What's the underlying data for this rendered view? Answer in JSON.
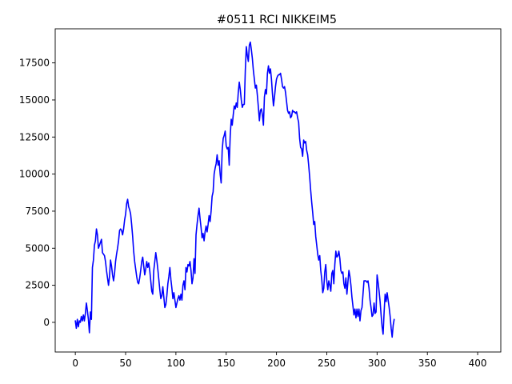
{
  "chart_data": {
    "type": "line",
    "title": "#0511 RCI NIKKEIM5",
    "xlabel": "",
    "ylabel": "",
    "xlim": [
      -20,
      423
    ],
    "ylim": [
      -2000,
      19800
    ],
    "x_ticks": [
      0,
      50,
      100,
      150,
      200,
      250,
      300,
      350,
      400
    ],
    "y_ticks": [
      0,
      2500,
      5000,
      7500,
      10000,
      12500,
      15000,
      17500
    ],
    "y_tick_labels": [
      "0",
      "2500",
      "5000",
      "7500",
      "10000",
      "12500",
      "15000",
      "17500"
    ],
    "grid": false,
    "series": [
      {
        "color": "#0000ff",
        "points": [
          [
            0,
            100
          ],
          [
            1,
            -400
          ],
          [
            2,
            200
          ],
          [
            3,
            -300
          ],
          [
            4,
            100
          ],
          [
            5,
            0
          ],
          [
            6,
            400
          ],
          [
            7,
            100
          ],
          [
            8,
            500
          ],
          [
            9,
            100
          ],
          [
            10,
            600
          ],
          [
            11,
            1300
          ],
          [
            12,
            800
          ],
          [
            13,
            200
          ],
          [
            14,
            -700
          ],
          [
            15,
            700
          ],
          [
            16,
            200
          ],
          [
            17,
            3700
          ],
          [
            18,
            4200
          ],
          [
            19,
            5200
          ],
          [
            20,
            5500
          ],
          [
            21,
            6300
          ],
          [
            22,
            5900
          ],
          [
            23,
            5000
          ],
          [
            24,
            5200
          ],
          [
            25,
            5400
          ],
          [
            26,
            5600
          ],
          [
            27,
            4700
          ],
          [
            28,
            4600
          ],
          [
            29,
            4500
          ],
          [
            30,
            4100
          ],
          [
            31,
            3500
          ],
          [
            32,
            3000
          ],
          [
            33,
            2500
          ],
          [
            34,
            3100
          ],
          [
            35,
            4200
          ],
          [
            36,
            3800
          ],
          [
            37,
            3200
          ],
          [
            38,
            2800
          ],
          [
            39,
            3300
          ],
          [
            40,
            4100
          ],
          [
            41,
            4600
          ],
          [
            42,
            5000
          ],
          [
            43,
            5500
          ],
          [
            44,
            6200
          ],
          [
            45,
            6300
          ],
          [
            46,
            6200
          ],
          [
            47,
            5900
          ],
          [
            48,
            6300
          ],
          [
            49,
            6900
          ],
          [
            50,
            7300
          ],
          [
            51,
            8000
          ],
          [
            52,
            8300
          ],
          [
            53,
            7800
          ],
          [
            54,
            7600
          ],
          [
            55,
            7300
          ],
          [
            56,
            6600
          ],
          [
            57,
            5800
          ],
          [
            58,
            4800
          ],
          [
            59,
            4100
          ],
          [
            60,
            3600
          ],
          [
            61,
            3100
          ],
          [
            62,
            2700
          ],
          [
            63,
            2600
          ],
          [
            64,
            3000
          ],
          [
            65,
            3500
          ],
          [
            66,
            4100
          ],
          [
            67,
            4400
          ],
          [
            68,
            3800
          ],
          [
            69,
            3200
          ],
          [
            70,
            3600
          ],
          [
            71,
            4100
          ],
          [
            72,
            3700
          ],
          [
            73,
            4000
          ],
          [
            74,
            3500
          ],
          [
            75,
            2800
          ],
          [
            76,
            2100
          ],
          [
            77,
            1900
          ],
          [
            78,
            3500
          ],
          [
            79,
            4100
          ],
          [
            80,
            4700
          ],
          [
            81,
            4200
          ],
          [
            82,
            3600
          ],
          [
            83,
            2900
          ],
          [
            84,
            2200
          ],
          [
            85,
            1600
          ],
          [
            86,
            1800
          ],
          [
            87,
            2400
          ],
          [
            88,
            1700
          ],
          [
            89,
            1000
          ],
          [
            90,
            1200
          ],
          [
            91,
            1800
          ],
          [
            92,
            2600
          ],
          [
            93,
            3100
          ],
          [
            94,
            3700
          ],
          [
            95,
            2900
          ],
          [
            96,
            2300
          ],
          [
            97,
            1600
          ],
          [
            98,
            2000
          ],
          [
            99,
            1500
          ],
          [
            100,
            1000
          ],
          [
            101,
            1300
          ],
          [
            102,
            1600
          ],
          [
            103,
            1800
          ],
          [
            104,
            1500
          ],
          [
            105,
            1900
          ],
          [
            106,
            1500
          ],
          [
            107,
            2500
          ],
          [
            108,
            2800
          ],
          [
            109,
            2200
          ],
          [
            110,
            3700
          ],
          [
            111,
            3400
          ],
          [
            112,
            3900
          ],
          [
            113,
            3800
          ],
          [
            114,
            4100
          ],
          [
            115,
            3500
          ],
          [
            116,
            2600
          ],
          [
            117,
            3000
          ],
          [
            118,
            4300
          ],
          [
            119,
            3300
          ],
          [
            120,
            5900
          ],
          [
            121,
            6600
          ],
          [
            122,
            7200
          ],
          [
            123,
            7700
          ],
          [
            124,
            7000
          ],
          [
            125,
            6400
          ],
          [
            126,
            5700
          ],
          [
            127,
            6000
          ],
          [
            128,
            5500
          ],
          [
            129,
            6100
          ],
          [
            130,
            6500
          ],
          [
            131,
            6100
          ],
          [
            132,
            6600
          ],
          [
            133,
            7200
          ],
          [
            134,
            6800
          ],
          [
            135,
            7500
          ],
          [
            136,
            8500
          ],
          [
            137,
            8800
          ],
          [
            138,
            10000
          ],
          [
            139,
            10400
          ],
          [
            140,
            10700
          ],
          [
            141,
            11300
          ],
          [
            142,
            10600
          ],
          [
            143,
            10900
          ],
          [
            144,
            10000
          ],
          [
            145,
            9400
          ],
          [
            146,
            11600
          ],
          [
            147,
            12400
          ],
          [
            148,
            12600
          ],
          [
            149,
            12900
          ],
          [
            150,
            11900
          ],
          [
            151,
            11700
          ],
          [
            152,
            11800
          ],
          [
            153,
            10600
          ],
          [
            154,
            12600
          ],
          [
            155,
            13700
          ],
          [
            156,
            13300
          ],
          [
            157,
            14000
          ],
          [
            158,
            14600
          ],
          [
            159,
            14400
          ],
          [
            160,
            14800
          ],
          [
            161,
            14500
          ],
          [
            162,
            15500
          ],
          [
            163,
            16200
          ],
          [
            164,
            15700
          ],
          [
            165,
            15000
          ],
          [
            166,
            14500
          ],
          [
            167,
            14700
          ],
          [
            168,
            14700
          ],
          [
            169,
            17000
          ],
          [
            170,
            18600
          ],
          [
            171,
            18000
          ],
          [
            172,
            17600
          ],
          [
            173,
            18700
          ],
          [
            174,
            18900
          ],
          [
            175,
            18400
          ],
          [
            176,
            17800
          ],
          [
            177,
            17000
          ],
          [
            178,
            16400
          ],
          [
            179,
            15800
          ],
          [
            180,
            16000
          ],
          [
            181,
            15300
          ],
          [
            182,
            14500
          ],
          [
            183,
            13600
          ],
          [
            184,
            14300
          ],
          [
            185,
            14400
          ],
          [
            186,
            14000
          ],
          [
            187,
            13300
          ],
          [
            188,
            15200
          ],
          [
            189,
            15700
          ],
          [
            190,
            15400
          ],
          [
            191,
            16800
          ],
          [
            192,
            17300
          ],
          [
            193,
            16800
          ],
          [
            194,
            17100
          ],
          [
            195,
            16400
          ],
          [
            196,
            15400
          ],
          [
            197,
            14600
          ],
          [
            198,
            15200
          ],
          [
            199,
            15900
          ],
          [
            200,
            16400
          ],
          [
            201,
            16600
          ],
          [
            202,
            16700
          ],
          [
            203,
            16700
          ],
          [
            204,
            16800
          ],
          [
            205,
            16400
          ],
          [
            206,
            15900
          ],
          [
            207,
            15800
          ],
          [
            208,
            15900
          ],
          [
            209,
            15500
          ],
          [
            210,
            14900
          ],
          [
            211,
            14300
          ],
          [
            212,
            14100
          ],
          [
            213,
            14200
          ],
          [
            214,
            13800
          ],
          [
            215,
            13900
          ],
          [
            216,
            14300
          ],
          [
            217,
            14200
          ],
          [
            218,
            14200
          ],
          [
            219,
            14100
          ],
          [
            220,
            14200
          ],
          [
            221,
            13800
          ],
          [
            222,
            13500
          ],
          [
            223,
            12400
          ],
          [
            224,
            11800
          ],
          [
            225,
            11700
          ],
          [
            226,
            11200
          ],
          [
            227,
            12300
          ],
          [
            228,
            12100
          ],
          [
            229,
            12200
          ],
          [
            230,
            11600
          ],
          [
            231,
            11300
          ],
          [
            232,
            10600
          ],
          [
            233,
            9800
          ],
          [
            234,
            8900
          ],
          [
            235,
            8100
          ],
          [
            236,
            7400
          ],
          [
            237,
            6600
          ],
          [
            238,
            6800
          ],
          [
            239,
            5800
          ],
          [
            240,
            5200
          ],
          [
            241,
            4600
          ],
          [
            242,
            4200
          ],
          [
            243,
            4500
          ],
          [
            244,
            3500
          ],
          [
            245,
            2900
          ],
          [
            246,
            2000
          ],
          [
            247,
            2300
          ],
          [
            248,
            3400
          ],
          [
            249,
            3900
          ],
          [
            250,
            2800
          ],
          [
            251,
            2200
          ],
          [
            252,
            2800
          ],
          [
            253,
            2500
          ],
          [
            254,
            2100
          ],
          [
            255,
            3300
          ],
          [
            256,
            3500
          ],
          [
            257,
            2600
          ],
          [
            258,
            3900
          ],
          [
            259,
            4800
          ],
          [
            260,
            4400
          ],
          [
            261,
            4500
          ],
          [
            262,
            4800
          ],
          [
            263,
            4300
          ],
          [
            264,
            3500
          ],
          [
            265,
            3300
          ],
          [
            266,
            3400
          ],
          [
            267,
            2600
          ],
          [
            268,
            2300
          ],
          [
            269,
            3000
          ],
          [
            270,
            1900
          ],
          [
            271,
            2700
          ],
          [
            272,
            3500
          ],
          [
            273,
            3100
          ],
          [
            274,
            2500
          ],
          [
            275,
            1700
          ],
          [
            276,
            1100
          ],
          [
            277,
            500
          ],
          [
            278,
            900
          ],
          [
            279,
            300
          ],
          [
            280,
            900
          ],
          [
            281,
            400
          ],
          [
            282,
            900
          ],
          [
            283,
            100
          ],
          [
            284,
            800
          ],
          [
            285,
            1000
          ],
          [
            286,
            1900
          ],
          [
            287,
            2800
          ],
          [
            288,
            2800
          ],
          [
            289,
            2800
          ],
          [
            290,
            2700
          ],
          [
            291,
            2800
          ],
          [
            292,
            2300
          ],
          [
            293,
            1500
          ],
          [
            294,
            1000
          ],
          [
            295,
            400
          ],
          [
            296,
            500
          ],
          [
            297,
            1300
          ],
          [
            298,
            600
          ],
          [
            299,
            700
          ],
          [
            300,
            3200
          ],
          [
            301,
            2700
          ],
          [
            302,
            2100
          ],
          [
            303,
            1400
          ],
          [
            304,
            500
          ],
          [
            305,
            -300
          ],
          [
            306,
            -800
          ],
          [
            307,
            700
          ],
          [
            308,
            1900
          ],
          [
            309,
            1400
          ],
          [
            310,
            2000
          ],
          [
            311,
            1500
          ],
          [
            312,
            1000
          ],
          [
            313,
            400
          ],
          [
            314,
            -400
          ],
          [
            315,
            -1000
          ],
          [
            316,
            -200
          ],
          [
            317,
            200
          ]
        ]
      }
    ]
  }
}
